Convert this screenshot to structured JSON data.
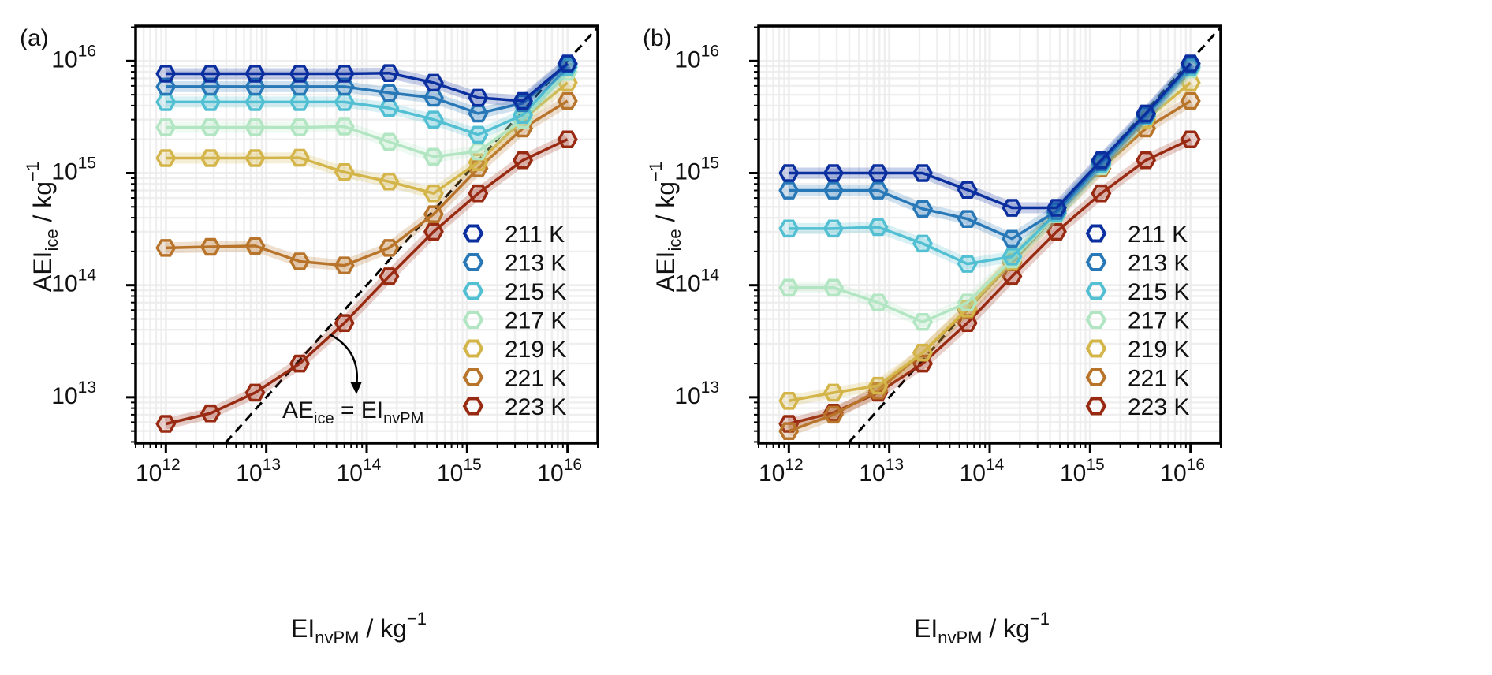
{
  "chart_data": [
    {
      "type": "line",
      "panel_label": "(a)",
      "x_scale": "log",
      "y_scale": "log",
      "xlim": [
        500000000000.0,
        2e+16
      ],
      "ylim": [
        3900000000000.0,
        2.05e+16
      ],
      "grid": true,
      "xlabel": {
        "main": "EI",
        "sub": "nvPM",
        "unit": " / kg",
        "sup": "−1"
      },
      "ylabel": {
        "main": "AEI",
        "sub": "ice",
        "unit": " / kg",
        "sup": "−1"
      },
      "x_ticks": [
        {
          "base": "10",
          "exp": "12",
          "value": 1000000000000.0
        },
        {
          "base": "10",
          "exp": "13",
          "value": 10000000000000.0
        },
        {
          "base": "10",
          "exp": "14",
          "value": 100000000000000.0
        },
        {
          "base": "10",
          "exp": "15",
          "value": 1000000000000000.0
        },
        {
          "base": "10",
          "exp": "16",
          "value": 1e+16
        }
      ],
      "y_ticks": [
        {
          "base": "10",
          "exp": "13",
          "value": 10000000000000.0
        },
        {
          "base": "10",
          "exp": "14",
          "value": 100000000000000.0
        },
        {
          "base": "10",
          "exp": "15",
          "value": 1000000000000000.0
        },
        {
          "base": "10",
          "exp": "16",
          "value": 1e+16
        }
      ],
      "reference_line": {
        "style": "dashed",
        "color": "#000000",
        "relation": "y = x"
      },
      "annotation": {
        "a": "AE",
        "a_sub": "ice",
        "b": " = EI",
        "b_sub": "nvPM"
      },
      "legend_placement": "lower-right",
      "x": [
        1000000000000.0,
        2780000000000.0,
        7740000000000.0,
        21500000000000.0,
        59900000000000.0,
        167000000000000.0,
        464000000000000.0,
        1290000000000000.0,
        3590000000000000.0,
        1e+16
      ],
      "series": [
        {
          "name": "211 K",
          "color": "#0b2f9f",
          "values": [
            7700000000000000.0,
            7700000000000000.0,
            7700000000000000.0,
            7700000000000000.0,
            7700000000000000.0,
            7800000000000000.0,
            6400000000000000.0,
            4700000000000000.0,
            4400000000000000.0,
            9500000000000000.0
          ]
        },
        {
          "name": "213 K",
          "color": "#2878b8",
          "values": [
            5900000000000000.0,
            5900000000000000.0,
            5900000000000000.0,
            5900000000000000.0,
            5900000000000000.0,
            5200000000000000.0,
            4700000000000000.0,
            3400000000000000.0,
            4200000000000000.0,
            9300000000000000.0
          ]
        },
        {
          "name": "215 K",
          "color": "#52c0d2",
          "values": [
            4300000000000000.0,
            4300000000000000.0,
            4300000000000000.0,
            4300000000000000.0,
            4300000000000000.0,
            3800000000000000.0,
            3000000000000000.0,
            2200000000000000.0,
            3300000000000000.0,
            8800000000000000.0
          ]
        },
        {
          "name": "217 K",
          "color": "#b2e6c3",
          "values": [
            2560000000000000.0,
            2560000000000000.0,
            2560000000000000.0,
            2560000000000000.0,
            2600000000000000.0,
            1900000000000000.0,
            1400000000000000.0,
            1560000000000000.0,
            3000000000000000.0,
            8000000000000000.0
          ]
        },
        {
          "name": "219 K",
          "color": "#d4b54a",
          "values": [
            1360000000000000.0,
            1360000000000000.0,
            1360000000000000.0,
            1370000000000000.0,
            1020000000000000.0,
            840000000000000.0,
            660000000000000.0,
            1250000000000000.0,
            3000000000000000.0,
            6400000000000000.0
          ]
        },
        {
          "name": "221 K",
          "color": "#b8742a",
          "values": [
            215000000000000.0,
            220000000000000.0,
            224000000000000.0,
            163000000000000.0,
            150000000000000.0,
            215000000000000.0,
            430000000000000.0,
            1100000000000000.0,
            2500000000000000.0,
            4400000000000000.0
          ]
        },
        {
          "name": "223 K",
          "color": "#992a12",
          "values": [
            5800000000000.0,
            7200000000000.0,
            11000000000000.0,
            20000000000000.0,
            46000000000000.0,
            120000000000000.0,
            300000000000000.0,
            660000000000000.0,
            1300000000000000.0,
            2000000000000000.0
          ]
        }
      ]
    },
    {
      "type": "line",
      "panel_label": "(b)",
      "x_scale": "log",
      "y_scale": "log",
      "xlim": [
        500000000000.0,
        2e+16
      ],
      "ylim": [
        3900000000000.0,
        2.05e+16
      ],
      "grid": true,
      "xlabel": {
        "main": "EI",
        "sub": "nvPM",
        "unit": " / kg",
        "sup": "−1"
      },
      "ylabel": {
        "main": "AEI",
        "sub": "ice",
        "unit": " / kg",
        "sup": "−1"
      },
      "x_ticks": [
        {
          "base": "10",
          "exp": "12",
          "value": 1000000000000.0
        },
        {
          "base": "10",
          "exp": "13",
          "value": 10000000000000.0
        },
        {
          "base": "10",
          "exp": "14",
          "value": 100000000000000.0
        },
        {
          "base": "10",
          "exp": "15",
          "value": 1000000000000000.0
        },
        {
          "base": "10",
          "exp": "16",
          "value": 1e+16
        }
      ],
      "y_ticks": [
        {
          "base": "10",
          "exp": "13",
          "value": 10000000000000.0
        },
        {
          "base": "10",
          "exp": "14",
          "value": 100000000000000.0
        },
        {
          "base": "10",
          "exp": "15",
          "value": 1000000000000000.0
        },
        {
          "base": "10",
          "exp": "16",
          "value": 1e+16
        }
      ],
      "reference_line": {
        "style": "dashed",
        "color": "#000000",
        "relation": "y = x"
      },
      "legend_placement": "lower-right",
      "x": [
        1000000000000.0,
        2780000000000.0,
        7740000000000.0,
        21500000000000.0,
        59900000000000.0,
        167000000000000.0,
        464000000000000.0,
        1290000000000000.0,
        3590000000000000.0,
        1e+16
      ],
      "series": [
        {
          "name": "211 K",
          "color": "#0b2f9f",
          "values": [
            1000000000000000.0,
            1000000000000000.0,
            1000000000000000.0,
            1000000000000000.0,
            710000000000000.0,
            490000000000000.0,
            490000000000000.0,
            1300000000000000.0,
            3400000000000000.0,
            9500000000000000.0
          ]
        },
        {
          "name": "213 K",
          "color": "#2878b8",
          "values": [
            700000000000000.0,
            700000000000000.0,
            700000000000000.0,
            480000000000000.0,
            390000000000000.0,
            260000000000000.0,
            460000000000000.0,
            1250000000000000.0,
            3300000000000000.0,
            9200000000000000.0
          ]
        },
        {
          "name": "215 K",
          "color": "#52c0d2",
          "values": [
            320000000000000.0,
            320000000000000.0,
            330000000000000.0,
            235000000000000.0,
            155000000000000.0,
            180000000000000.0,
            440000000000000.0,
            1200000000000000.0,
            3200000000000000.0,
            8800000000000000.0
          ]
        },
        {
          "name": "217 K",
          "color": "#b2e6c3",
          "values": [
            95000000000000.0,
            95000000000000.0,
            70000000000000.0,
            47000000000000.0,
            70000000000000.0,
            170000000000000.0,
            430000000000000.0,
            1150000000000000.0,
            3200000000000000.0,
            8400000000000000.0
          ]
        },
        {
          "name": "219 K",
          "color": "#d4b54a",
          "values": [
            9300000000000.0,
            11000000000000.0,
            12700000000000.0,
            25000000000000.0,
            62000000000000.0,
            165000000000000.0,
            440000000000000.0,
            1150000000000000.0,
            3000000000000000.0,
            6400000000000000.0
          ]
        },
        {
          "name": "221 K",
          "color": "#b8742a",
          "values": [
            5000000000000.0,
            7000000000000.0,
            11500000000000.0,
            25000000000000.0,
            60000000000000.0,
            160000000000000.0,
            430000000000000.0,
            1100000000000000.0,
            2500000000000000.0,
            4400000000000000.0
          ]
        },
        {
          "name": "223 K",
          "color": "#992a12",
          "values": [
            5800000000000.0,
            7300000000000.0,
            11000000000000.0,
            20000000000000.0,
            46000000000000.0,
            120000000000000.0,
            300000000000000.0,
            660000000000000.0,
            1300000000000000.0,
            2000000000000000.0
          ]
        }
      ]
    }
  ]
}
